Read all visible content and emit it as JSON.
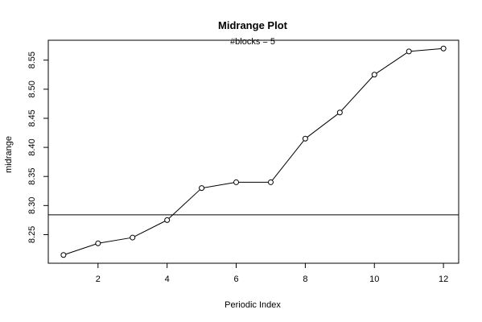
{
  "chart_data": {
    "type": "line",
    "title": "Midrange Plot",
    "subtitle": "#blocks =  5",
    "xlabel": "Periodic Index",
    "ylabel": "midrange",
    "x": [
      1,
      2,
      3,
      4,
      5,
      6,
      7,
      8,
      9,
      10,
      11,
      12
    ],
    "y": [
      8.215,
      8.235,
      8.245,
      8.275,
      8.33,
      8.34,
      8.34,
      8.415,
      8.46,
      8.525,
      8.565,
      8.57
    ],
    "reference_line": 8.284,
    "xlim": [
      0.56,
      12.44
    ],
    "ylim": [
      8.2008,
      8.5842
    ],
    "x_ticks": [
      2,
      4,
      6,
      8,
      10,
      12
    ],
    "x_tick_labels": [
      "2",
      "4",
      "6",
      "8",
      "10",
      "12"
    ],
    "y_ticks": [
      8.25,
      8.3,
      8.35,
      8.4,
      8.45,
      8.5,
      8.55
    ],
    "y_tick_labels": [
      "8.25",
      "8.30",
      "8.35",
      "8.40",
      "8.45",
      "8.50",
      "8.55"
    ],
    "grid": false,
    "markers": "open-circle",
    "line_color": "#000000"
  }
}
